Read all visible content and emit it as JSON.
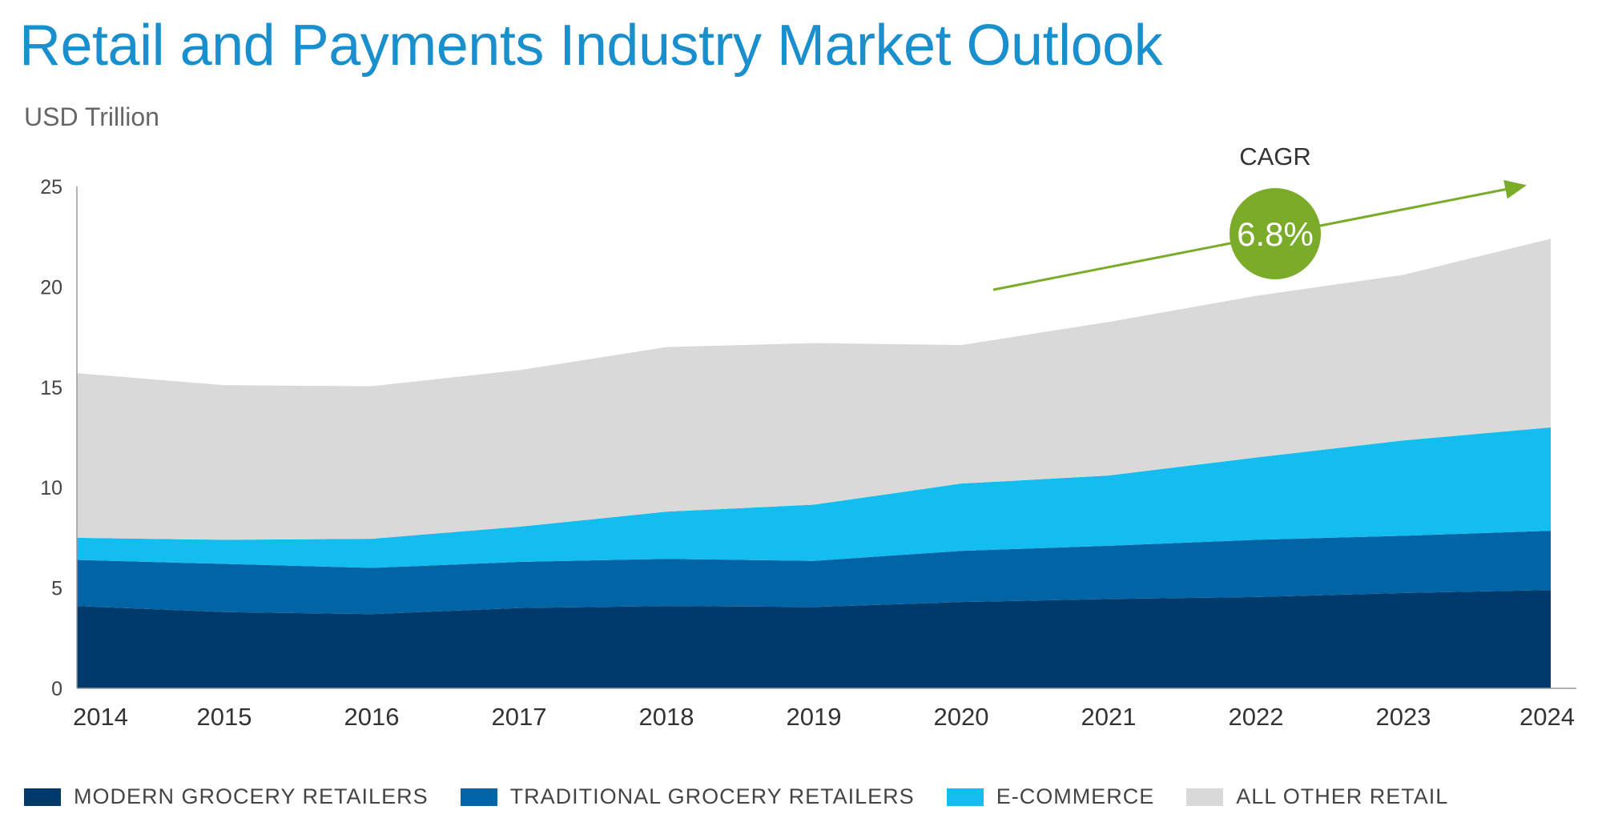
{
  "header": {
    "title": "Retail and Payments Industry Market Outlook",
    "subtitle": "USD Trillion"
  },
  "annotation": {
    "label": "CAGR",
    "value": "6.8%",
    "color": "#7aac2a"
  },
  "chart_data": {
    "type": "area",
    "stacked": true,
    "categories": [
      "2014",
      "2015",
      "2016",
      "2017",
      "2018",
      "2019",
      "2020",
      "2021",
      "2022",
      "2023",
      "2024"
    ],
    "ylim": [
      0,
      25
    ],
    "yticks": [
      0,
      5,
      10,
      15,
      20,
      25
    ],
    "ytick_labels": [
      "0",
      "5",
      "10",
      "15",
      "20",
      "25"
    ],
    "xlabel": "",
    "ylabel": "USD Trillion",
    "grid": false,
    "legend_position": "bottom",
    "series": [
      {
        "name": "MODERN GROCERY RETAILERS",
        "color": "#003a6a",
        "values": [
          4.1,
          3.8,
          3.7,
          4.0,
          4.1,
          4.05,
          4.3,
          4.45,
          4.55,
          4.75,
          4.9
        ]
      },
      {
        "name": "TRADITIONAL GROCERY RETAILERS",
        "color": "#0064a5",
        "values": [
          2.3,
          2.4,
          2.3,
          2.3,
          2.35,
          2.3,
          2.55,
          2.65,
          2.85,
          2.85,
          2.95
        ]
      },
      {
        "name": "E-COMMERCE",
        "color": "#13bdf0",
        "values": [
          1.1,
          1.2,
          1.45,
          1.75,
          2.35,
          2.8,
          3.35,
          3.5,
          4.1,
          4.75,
          5.15
        ]
      },
      {
        "name": "ALL OTHER RETAIL",
        "color": "#d9d9d9",
        "values": [
          8.2,
          7.7,
          7.6,
          7.8,
          8.2,
          8.05,
          6.9,
          7.65,
          8.05,
          8.25,
          9.4
        ]
      }
    ]
  }
}
